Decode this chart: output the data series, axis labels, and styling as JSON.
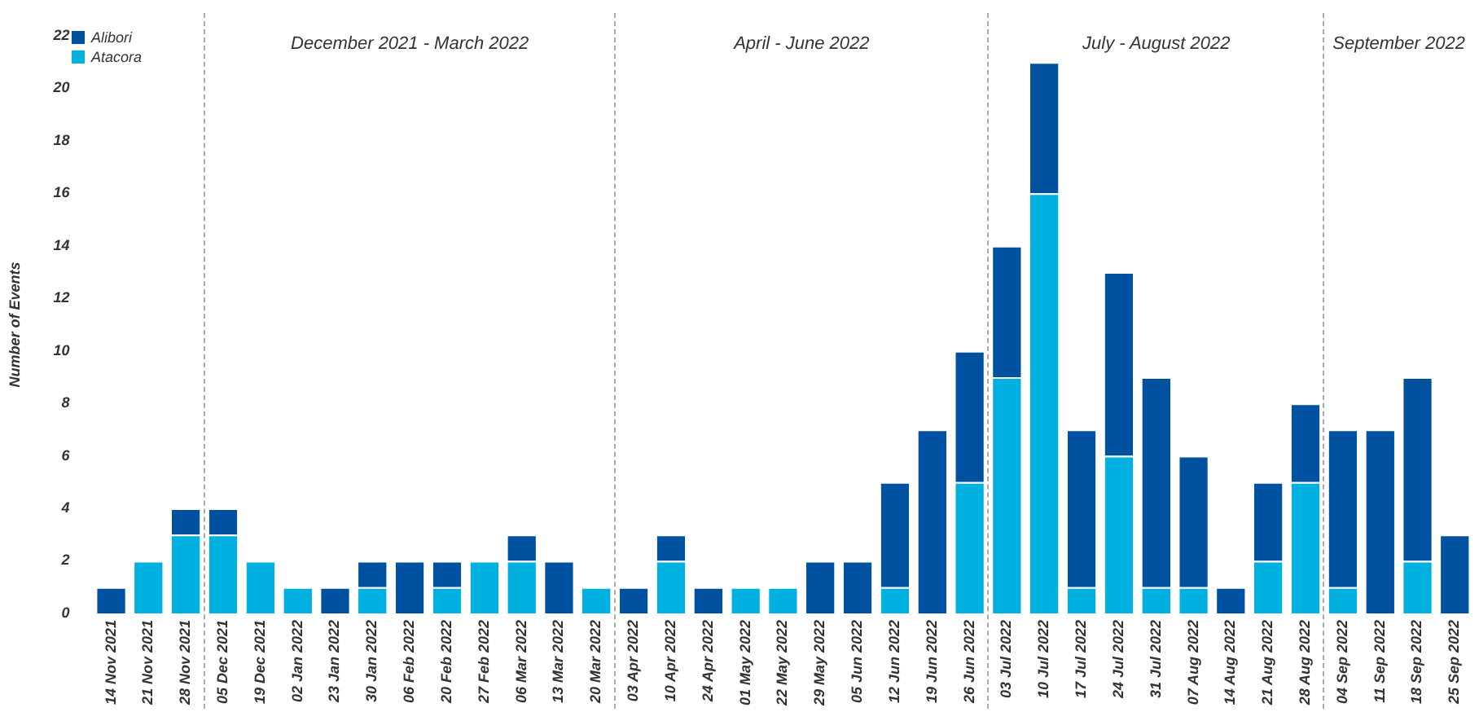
{
  "chart_data": {
    "type": "bar",
    "stacked": true,
    "ylabel": "Number of Events",
    "categories": [
      "14 Nov 2021",
      "21 Nov 2021",
      "28 Nov 2021",
      "05 Dec 2021",
      "19 Dec 2021",
      "02 Jan 2022",
      "23 Jan 2022",
      "30 Jan 2022",
      "06 Feb 2022",
      "20 Feb 2022",
      "27 Feb 2022",
      "06 Mar 2022",
      "13 Mar 2022",
      "20 Mar 2022",
      "03 Apr 2022",
      "10 Apr 2022",
      "24 Apr 2022",
      "01 May 2022",
      "22 May 2022",
      "29 May 2022",
      "05 Jun 2022",
      "12 Jun 2022",
      "19 Jun 2022",
      "26 Jun 2022",
      "03 Jul 2022",
      "10 Jul 2022",
      "17 Jul 2022",
      "24 Jul 2022",
      "31 Jul 2022",
      "07 Aug 2022",
      "14 Aug 2022",
      "21 Aug 2022",
      "28 Aug 2022",
      "04 Sep 2022",
      "11 Sep 2022",
      "18 Sep 2022",
      "25 Sep 2022"
    ],
    "series": [
      {
        "name": "Atacora",
        "color": "#00b0e0",
        "values": [
          0,
          2,
          3,
          3,
          2,
          1,
          0,
          1,
          0,
          1,
          2,
          2,
          0,
          1,
          0,
          2,
          0,
          1,
          1,
          0,
          0,
          1,
          0,
          5,
          9,
          16,
          1,
          6,
          1,
          1,
          0,
          2,
          5,
          1,
          0,
          2,
          0
        ]
      },
      {
        "name": "Alibori",
        "color": "#0052a0",
        "values": [
          1,
          0,
          1,
          1,
          0,
          0,
          1,
          1,
          2,
          1,
          0,
          1,
          2,
          0,
          1,
          1,
          1,
          0,
          0,
          2,
          2,
          4,
          7,
          5,
          5,
          5,
          6,
          7,
          8,
          5,
          1,
          3,
          3,
          6,
          7,
          7,
          3
        ]
      }
    ],
    "ylim": [
      0,
      22
    ],
    "yticks": [
      0,
      2,
      4,
      6,
      8,
      10,
      12,
      14,
      16,
      18,
      20,
      22
    ],
    "grid": false,
    "legend": "top left",
    "annotations": [
      "December 2021 - March 2022",
      "April - June 2022",
      "July - August 2022",
      "September 2022"
    ]
  }
}
